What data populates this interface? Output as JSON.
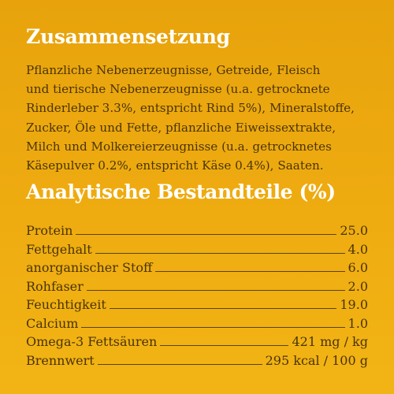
{
  "composition": {
    "title": "Zusammensetzung",
    "lines": [
      "Pflanzliche Nebenerzeugnisse, Getreide, Fleisch",
      "und tierische Nebenerzeugnisse (u.a. getrocknete",
      "Rinderleber 3.3%, entspricht Rind 5%), Mineralstoffe,",
      "Zucker, Öle und Fette, pflanzliche Eiweissextrakte,",
      "Milch und Molkereierzeugnisse (u.a. getrocknetes",
      "Käsepulver 0.2%, entspricht Käse 0.4%), Saaten."
    ]
  },
  "analysis": {
    "title": "Analytische Bestandteile (%)",
    "rows": [
      {
        "label": "Protein",
        "value": "25.0"
      },
      {
        "label": "Fettgehalt",
        "value": "4.0"
      },
      {
        "label": "anorganischer Stoff",
        "value": "6.0"
      },
      {
        "label": "Rohfaser",
        "value": "2.0"
      },
      {
        "label": "Feuchtigkeit",
        "value": "19.0"
      },
      {
        "label": "Calcium",
        "value": "1.0"
      },
      {
        "label": "Omega-3 Fettsäuren",
        "value": "421 mg / kg"
      },
      {
        "label": "Brennwert",
        "value": "295 kcal / 100 g"
      }
    ]
  }
}
